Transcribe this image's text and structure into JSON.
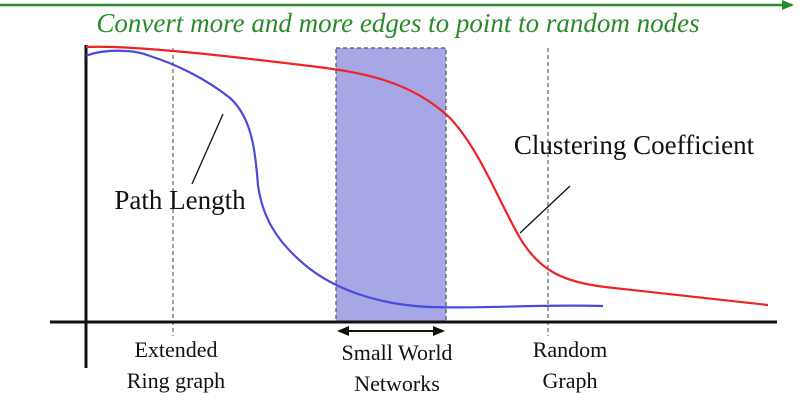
{
  "banner": {
    "text": "Convert more and more edges to point to random nodes",
    "color": "#2a8a2a"
  },
  "curves": {
    "path_length": {
      "label": "Path Length",
      "color": "#4a4adc"
    },
    "clustering": {
      "label": "Clustering Coefficient",
      "color": "#ee2222"
    }
  },
  "regions": {
    "small_world": {
      "line1": "Small World",
      "line2": "Networks",
      "fill": "#a7a7e6"
    }
  },
  "markers": {
    "extended": {
      "line1": "Extended",
      "line2": "Ring graph"
    },
    "random": {
      "line1": "Random",
      "line2": "Graph"
    }
  }
}
